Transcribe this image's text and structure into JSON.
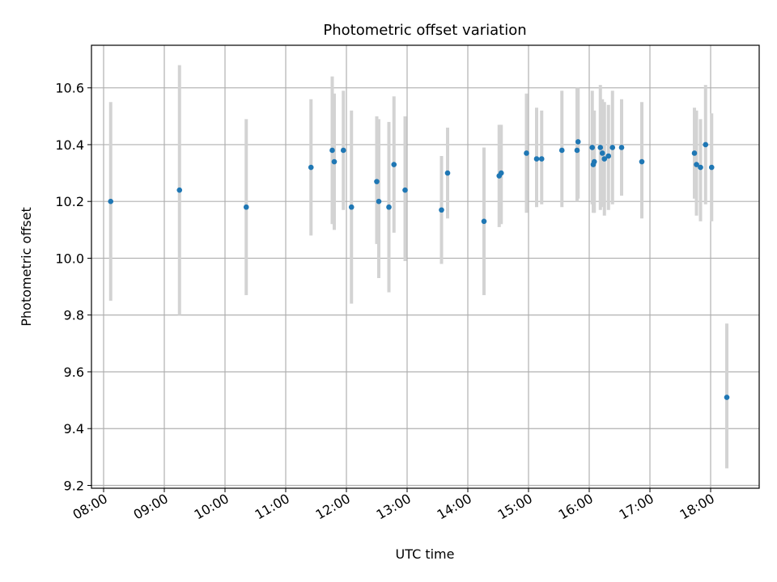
{
  "chart_data": {
    "type": "scatter",
    "title": "Photometric offset variation",
    "xlabel": "UTC time",
    "ylabel": "Photometric offset",
    "xlim": [
      "07:48",
      "18:48"
    ],
    "ylim": [
      9.19,
      10.75
    ],
    "x_ticks": [
      "08:00",
      "09:00",
      "10:00",
      "11:00",
      "12:00",
      "13:00",
      "14:00",
      "15:00",
      "16:00",
      "17:00",
      "18:00"
    ],
    "y_ticks": [
      9.2,
      9.4,
      9.6,
      9.8,
      10.0,
      10.2,
      10.4,
      10.6
    ],
    "y_tick_labels": [
      "9.2",
      "9.4",
      "9.6",
      "9.8",
      "10.0",
      "10.2",
      "10.4",
      "10.6"
    ],
    "grid": true,
    "colors": {
      "point": "#1f77b4",
      "errorbar": "#d3d3d3",
      "grid": "#b0b0b0"
    },
    "points": [
      {
        "time": "08:07",
        "y": 10.2,
        "y_low": 9.85,
        "y_high": 10.55
      },
      {
        "time": "09:15",
        "y": 10.24,
        "y_low": 9.8,
        "y_high": 10.68
      },
      {
        "time": "10:21",
        "y": 10.18,
        "y_low": 9.87,
        "y_high": 10.49
      },
      {
        "time": "11:25",
        "y": 10.32,
        "y_low": 10.08,
        "y_high": 10.56
      },
      {
        "time": "11:46",
        "y": 10.38,
        "y_low": 10.12,
        "y_high": 10.64
      },
      {
        "time": "11:48",
        "y": 10.34,
        "y_low": 10.1,
        "y_high": 10.58
      },
      {
        "time": "11:57",
        "y": 10.38,
        "y_low": 10.17,
        "y_high": 10.59
      },
      {
        "time": "12:05",
        "y": 10.18,
        "y_low": 9.84,
        "y_high": 10.52
      },
      {
        "time": "12:30",
        "y": 10.27,
        "y_low": 10.05,
        "y_high": 10.5
      },
      {
        "time": "12:32",
        "y": 10.2,
        "y_low": 9.93,
        "y_high": 10.49
      },
      {
        "time": "12:42",
        "y": 10.18,
        "y_low": 9.88,
        "y_high": 10.48
      },
      {
        "time": "12:47",
        "y": 10.33,
        "y_low": 10.09,
        "y_high": 10.57
      },
      {
        "time": "12:58",
        "y": 10.24,
        "y_low": 9.99,
        "y_high": 10.5
      },
      {
        "time": "13:34",
        "y": 10.17,
        "y_low": 9.98,
        "y_high": 10.36
      },
      {
        "time": "13:40",
        "y": 10.3,
        "y_low": 10.14,
        "y_high": 10.46
      },
      {
        "time": "14:16",
        "y": 10.13,
        "y_low": 9.87,
        "y_high": 10.39
      },
      {
        "time": "14:31",
        "y": 10.29,
        "y_low": 10.11,
        "y_high": 10.47
      },
      {
        "time": "14:33",
        "y": 10.3,
        "y_low": 10.12,
        "y_high": 10.47
      },
      {
        "time": "14:58",
        "y": 10.37,
        "y_low": 10.16,
        "y_high": 10.58
      },
      {
        "time": "15:08",
        "y": 10.35,
        "y_low": 10.18,
        "y_high": 10.53
      },
      {
        "time": "15:13",
        "y": 10.35,
        "y_low": 10.19,
        "y_high": 10.52
      },
      {
        "time": "15:33",
        "y": 10.38,
        "y_low": 10.18,
        "y_high": 10.59
      },
      {
        "time": "15:48",
        "y": 10.38,
        "y_low": 10.2,
        "y_high": 10.6
      },
      {
        "time": "15:49",
        "y": 10.41,
        "y_low": 10.21,
        "y_high": 10.6
      },
      {
        "time": "16:03",
        "y": 10.39,
        "y_low": 10.19,
        "y_high": 10.59
      },
      {
        "time": "16:04",
        "y": 10.33,
        "y_low": 10.16,
        "y_high": 10.51
      },
      {
        "time": "16:05",
        "y": 10.34,
        "y_low": 10.16,
        "y_high": 10.52
      },
      {
        "time": "16:11",
        "y": 10.39,
        "y_low": 10.17,
        "y_high": 10.61
      },
      {
        "time": "16:13",
        "y": 10.37,
        "y_low": 10.18,
        "y_high": 10.56
      },
      {
        "time": "16:15",
        "y": 10.35,
        "y_low": 10.15,
        "y_high": 10.55
      },
      {
        "time": "16:19",
        "y": 10.36,
        "y_low": 10.17,
        "y_high": 10.54
      },
      {
        "time": "16:23",
        "y": 10.39,
        "y_low": 10.19,
        "y_high": 10.59
      },
      {
        "time": "16:32",
        "y": 10.39,
        "y_low": 10.22,
        "y_high": 10.56
      },
      {
        "time": "16:52",
        "y": 10.34,
        "y_low": 10.14,
        "y_high": 10.55
      },
      {
        "time": "17:44",
        "y": 10.37,
        "y_low": 10.21,
        "y_high": 10.53
      },
      {
        "time": "17:46",
        "y": 10.33,
        "y_low": 10.15,
        "y_high": 10.52
      },
      {
        "time": "17:50",
        "y": 10.32,
        "y_low": 10.13,
        "y_high": 10.49
      },
      {
        "time": "17:55",
        "y": 10.4,
        "y_low": 10.19,
        "y_high": 10.61
      },
      {
        "time": "18:01",
        "y": 10.32,
        "y_low": 10.13,
        "y_high": 10.51
      },
      {
        "time": "18:16",
        "y": 9.51,
        "y_low": 9.26,
        "y_high": 9.77
      }
    ]
  }
}
